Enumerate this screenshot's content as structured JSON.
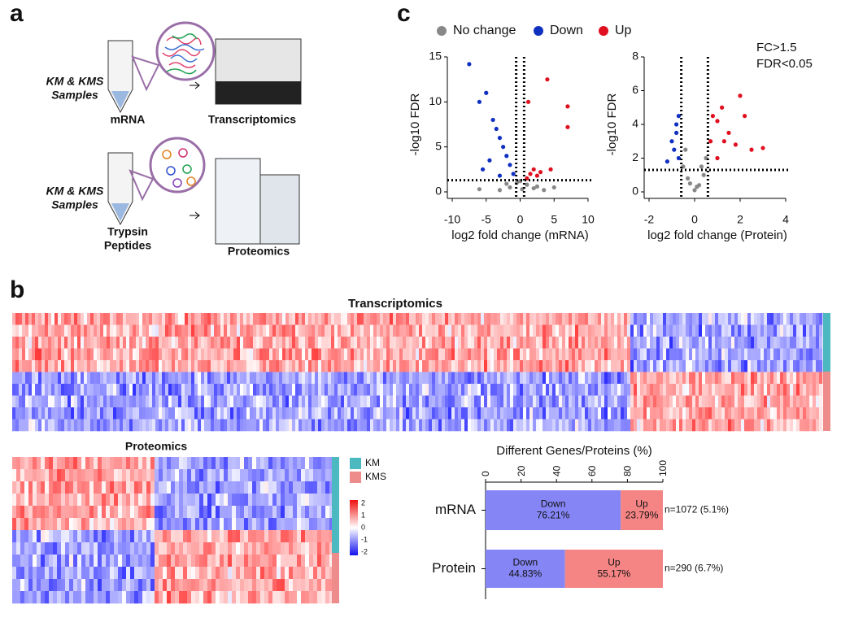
{
  "panel_labels": [
    "a",
    "b",
    "c"
  ],
  "panel_a": {
    "sample_lines": [
      "KM & KMS",
      "Samples"
    ],
    "rna": "mRNA",
    "rna_method": "Transcriptomics",
    "protein_lines": [
      "Trypsin",
      "Peptides"
    ],
    "protein_method": "Proteomics"
  },
  "panel_b": {
    "transcriptomics_title": "Transcriptomics",
    "proteomics_title": "Proteomics",
    "groups": [
      {
        "name": "KM",
        "color": "#4cb8bf"
      },
      {
        "name": "KMS",
        "color": "#ee8c8c"
      }
    ],
    "colorbar_ticks": [
      2,
      1,
      0,
      -1,
      -2
    ]
  },
  "chart_data": [
    {
      "type": "scatter",
      "legend": true,
      "annotations": [
        "FC>1.5",
        "FDR<0.05"
      ],
      "x_label": "log2 fold change (mRNA)",
      "y_label": "-log10 FDR",
      "xlim": [
        -10,
        10
      ],
      "xticks": [
        -10,
        -5,
        0,
        5,
        10
      ],
      "ylim": [
        0,
        15
      ],
      "yticks": [
        0,
        5,
        10,
        15
      ],
      "fc_threshold": 0.585,
      "fdr_threshold": 1.3,
      "series": [
        {
          "name": "No change",
          "color": "#888888",
          "x": [
            -3,
            -1.5,
            -0.5,
            0.3,
            1,
            2,
            3.5,
            -6,
            5,
            0,
            -2,
            2.5
          ],
          "values": [
            0.2,
            0.5,
            1,
            0.3,
            0.8,
            0.4,
            0.2,
            0.3,
            0.5,
            1.2,
            0.9,
            0.6
          ]
        },
        {
          "name": "Down",
          "color": "#1030c0",
          "x": [
            -7.5,
            -6,
            -5,
            -4,
            -3.5,
            -3,
            -2.5,
            -2,
            -1.5,
            -1,
            -4.5,
            -5.5,
            -3
          ],
          "values": [
            14.2,
            10,
            11,
            8,
            7,
            6,
            5,
            4,
            3,
            2,
            3.5,
            2.5,
            1.8
          ]
        },
        {
          "name": "Up",
          "color": "#e01020",
          "x": [
            1,
            1.5,
            2,
            2.5,
            3,
            4,
            7,
            7,
            4.5,
            1.2
          ],
          "values": [
            1.5,
            2,
            2.5,
            1.8,
            2.2,
            12.5,
            9.5,
            7.2,
            2.5,
            10
          ]
        }
      ]
    },
    {
      "type": "scatter",
      "x_label": "log2 fold change (Protein)",
      "y_label": "-log10 FDR",
      "xlim": [
        -2,
        4
      ],
      "xticks": [
        -2,
        0,
        2,
        4
      ],
      "ylim": [
        0,
        8
      ],
      "yticks": [
        0,
        2,
        4,
        6,
        8
      ],
      "fc_threshold": 0.585,
      "fdr_threshold": 1.3,
      "series": [
        {
          "name": "No change",
          "color": "#888888",
          "x": [
            -0.5,
            -0.3,
            0,
            0.2,
            0.4,
            0.5,
            -0.4,
            0.1,
            0.3,
            -0.2
          ],
          "values": [
            1.5,
            0.8,
            0.1,
            0.4,
            1,
            2,
            2.5,
            0.3,
            1.5,
            0.5
          ]
        },
        {
          "name": "Down",
          "color": "#1030c0",
          "x": [
            -0.7,
            -0.8,
            -1,
            -0.9,
            -1.2,
            -0.7,
            -0.8
          ],
          "values": [
            4.5,
            3.5,
            3,
            2.5,
            1.8,
            2,
            4
          ]
        },
        {
          "name": "Up",
          "color": "#e01020",
          "x": [
            0.7,
            1,
            1.2,
            1.5,
            2,
            1.8,
            2.5,
            3,
            1,
            0.8,
            1.3,
            2.2
          ],
          "values": [
            3,
            4.2,
            5,
            3.5,
            5.7,
            2.8,
            2.5,
            2.6,
            2,
            4.5,
            3,
            4.5
          ]
        }
      ]
    },
    {
      "type": "stacked_hbar",
      "title": "Different Genes/Proteins (%)",
      "categories": [
        "mRNA",
        "Protein"
      ],
      "xlim": [
        0,
        100
      ],
      "xticks": [
        0,
        20,
        40,
        60,
        80,
        100
      ],
      "series": [
        {
          "name": "Down",
          "color": "#8585f5",
          "values": [
            76.21,
            44.83
          ],
          "value_labels": [
            "76.21%",
            "44.83%"
          ]
        },
        {
          "name": "Up",
          "color": "#f58585",
          "values": [
            23.79,
            55.17
          ],
          "value_labels": [
            "23.79%",
            "55.17%"
          ]
        }
      ],
      "annotations": [
        "n=1072 (5.1%)",
        "n=290 (6.7%)"
      ]
    }
  ]
}
